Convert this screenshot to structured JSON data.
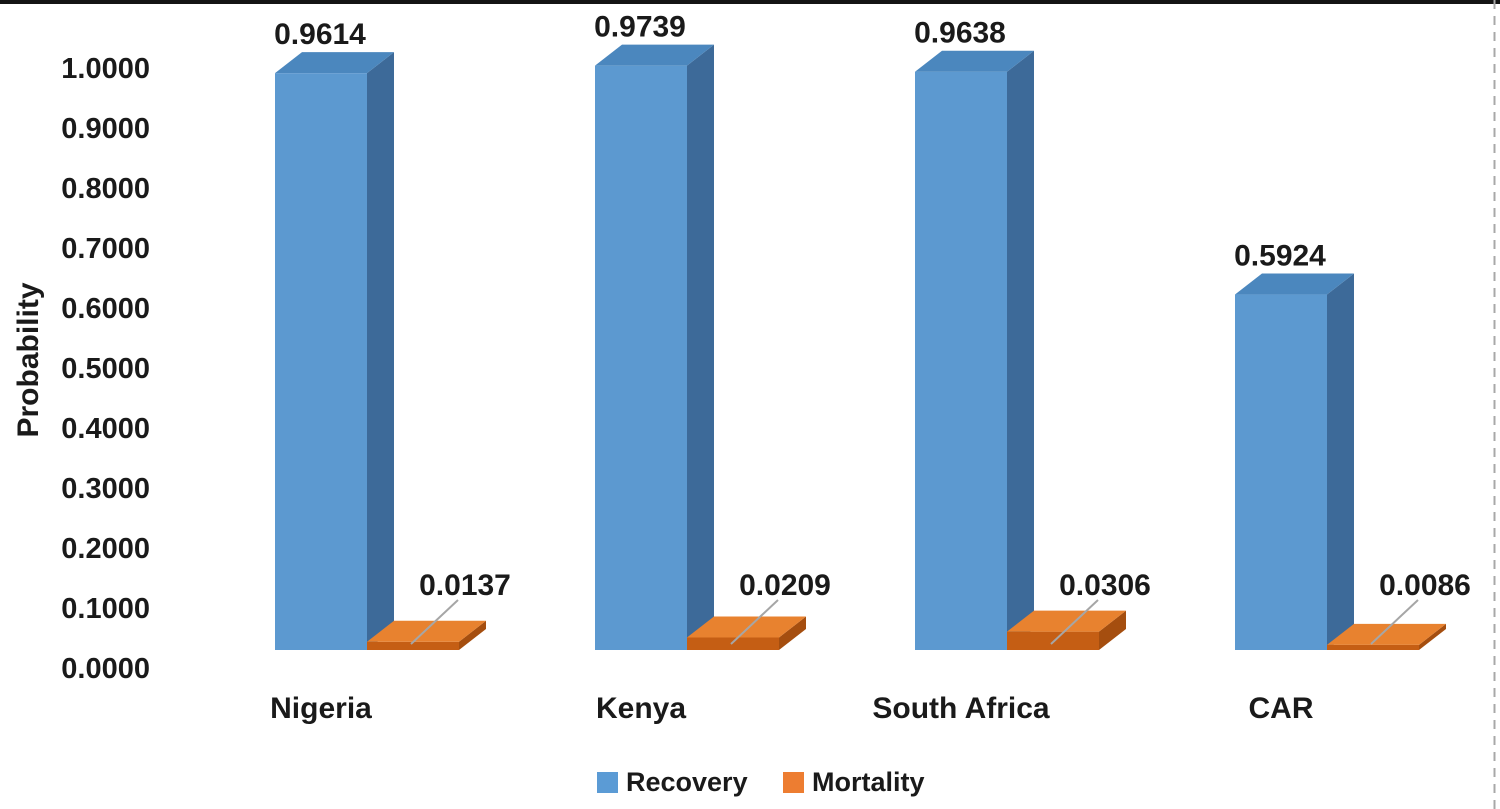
{
  "page": {
    "background": "#ffffff",
    "top_border_color": "#141414",
    "right_edge_dash_color": "#a8a8a8"
  },
  "chart_data": {
    "type": "bar",
    "variant": "3d-clustered-column",
    "title": "",
    "xlabel": "",
    "ylabel": "Probability",
    "categories": [
      "Nigeria",
      "Kenya",
      "South Africa",
      "CAR"
    ],
    "series": [
      {
        "name": "Recovery",
        "color": "#5B9BD5",
        "values": [
          0.9614,
          0.9739,
          0.9638,
          0.5924
        ],
        "labels": [
          "0.9614",
          "0.9739",
          "0.9638",
          "0.5924"
        ]
      },
      {
        "name": "Mortality",
        "color": "#ED7D31",
        "values": [
          0.0137,
          0.0209,
          0.0306,
          0.0086
        ],
        "labels": [
          "0.0137",
          "0.0209",
          "0.0306",
          "0.0086"
        ]
      }
    ],
    "ylim": [
      0,
      1
    ],
    "ytick_step": 0.1,
    "ytick_labels": [
      "0.0000",
      "0.1000",
      "0.2000",
      "0.3000",
      "0.4000",
      "0.5000",
      "0.6000",
      "0.7000",
      "0.8000",
      "0.9000",
      "1.0000"
    ],
    "grid": false,
    "legend_position": "bottom",
    "legend": [
      "Recovery",
      "Mortality"
    ],
    "data_label_leader_lines": true
  },
  "colors": {
    "recovery_front": "#5C99D0",
    "recovery_side": "#3D6A99",
    "recovery_top": "#4B87BE",
    "mortality_front": "#C55E14",
    "mortality_side": "#A54E0F",
    "mortality_top": "#E8822F",
    "leader_line": "#A6A6A6",
    "text": "#1a1a1a"
  }
}
